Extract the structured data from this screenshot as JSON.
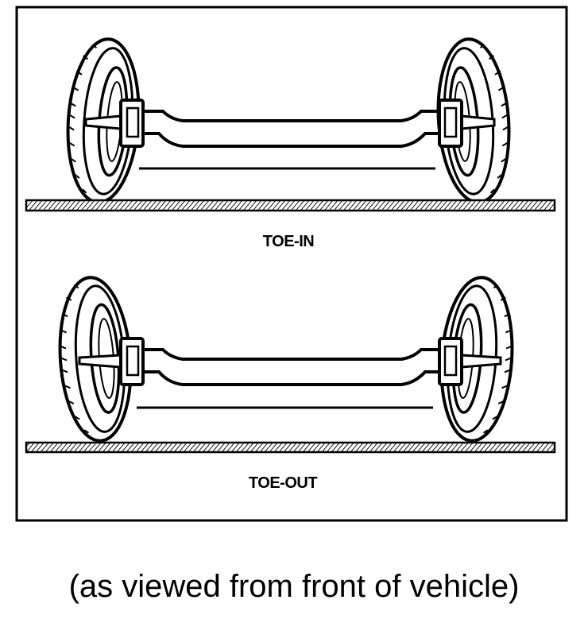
{
  "diagram": {
    "panels": [
      {
        "id": "toe-in",
        "label": "TOE-IN"
      },
      {
        "id": "toe-out",
        "label": "TOE-OUT"
      }
    ],
    "caption": "(as viewed from front of vehicle)",
    "colors": {
      "ink": "#000000",
      "paper": "#ffffff"
    }
  }
}
